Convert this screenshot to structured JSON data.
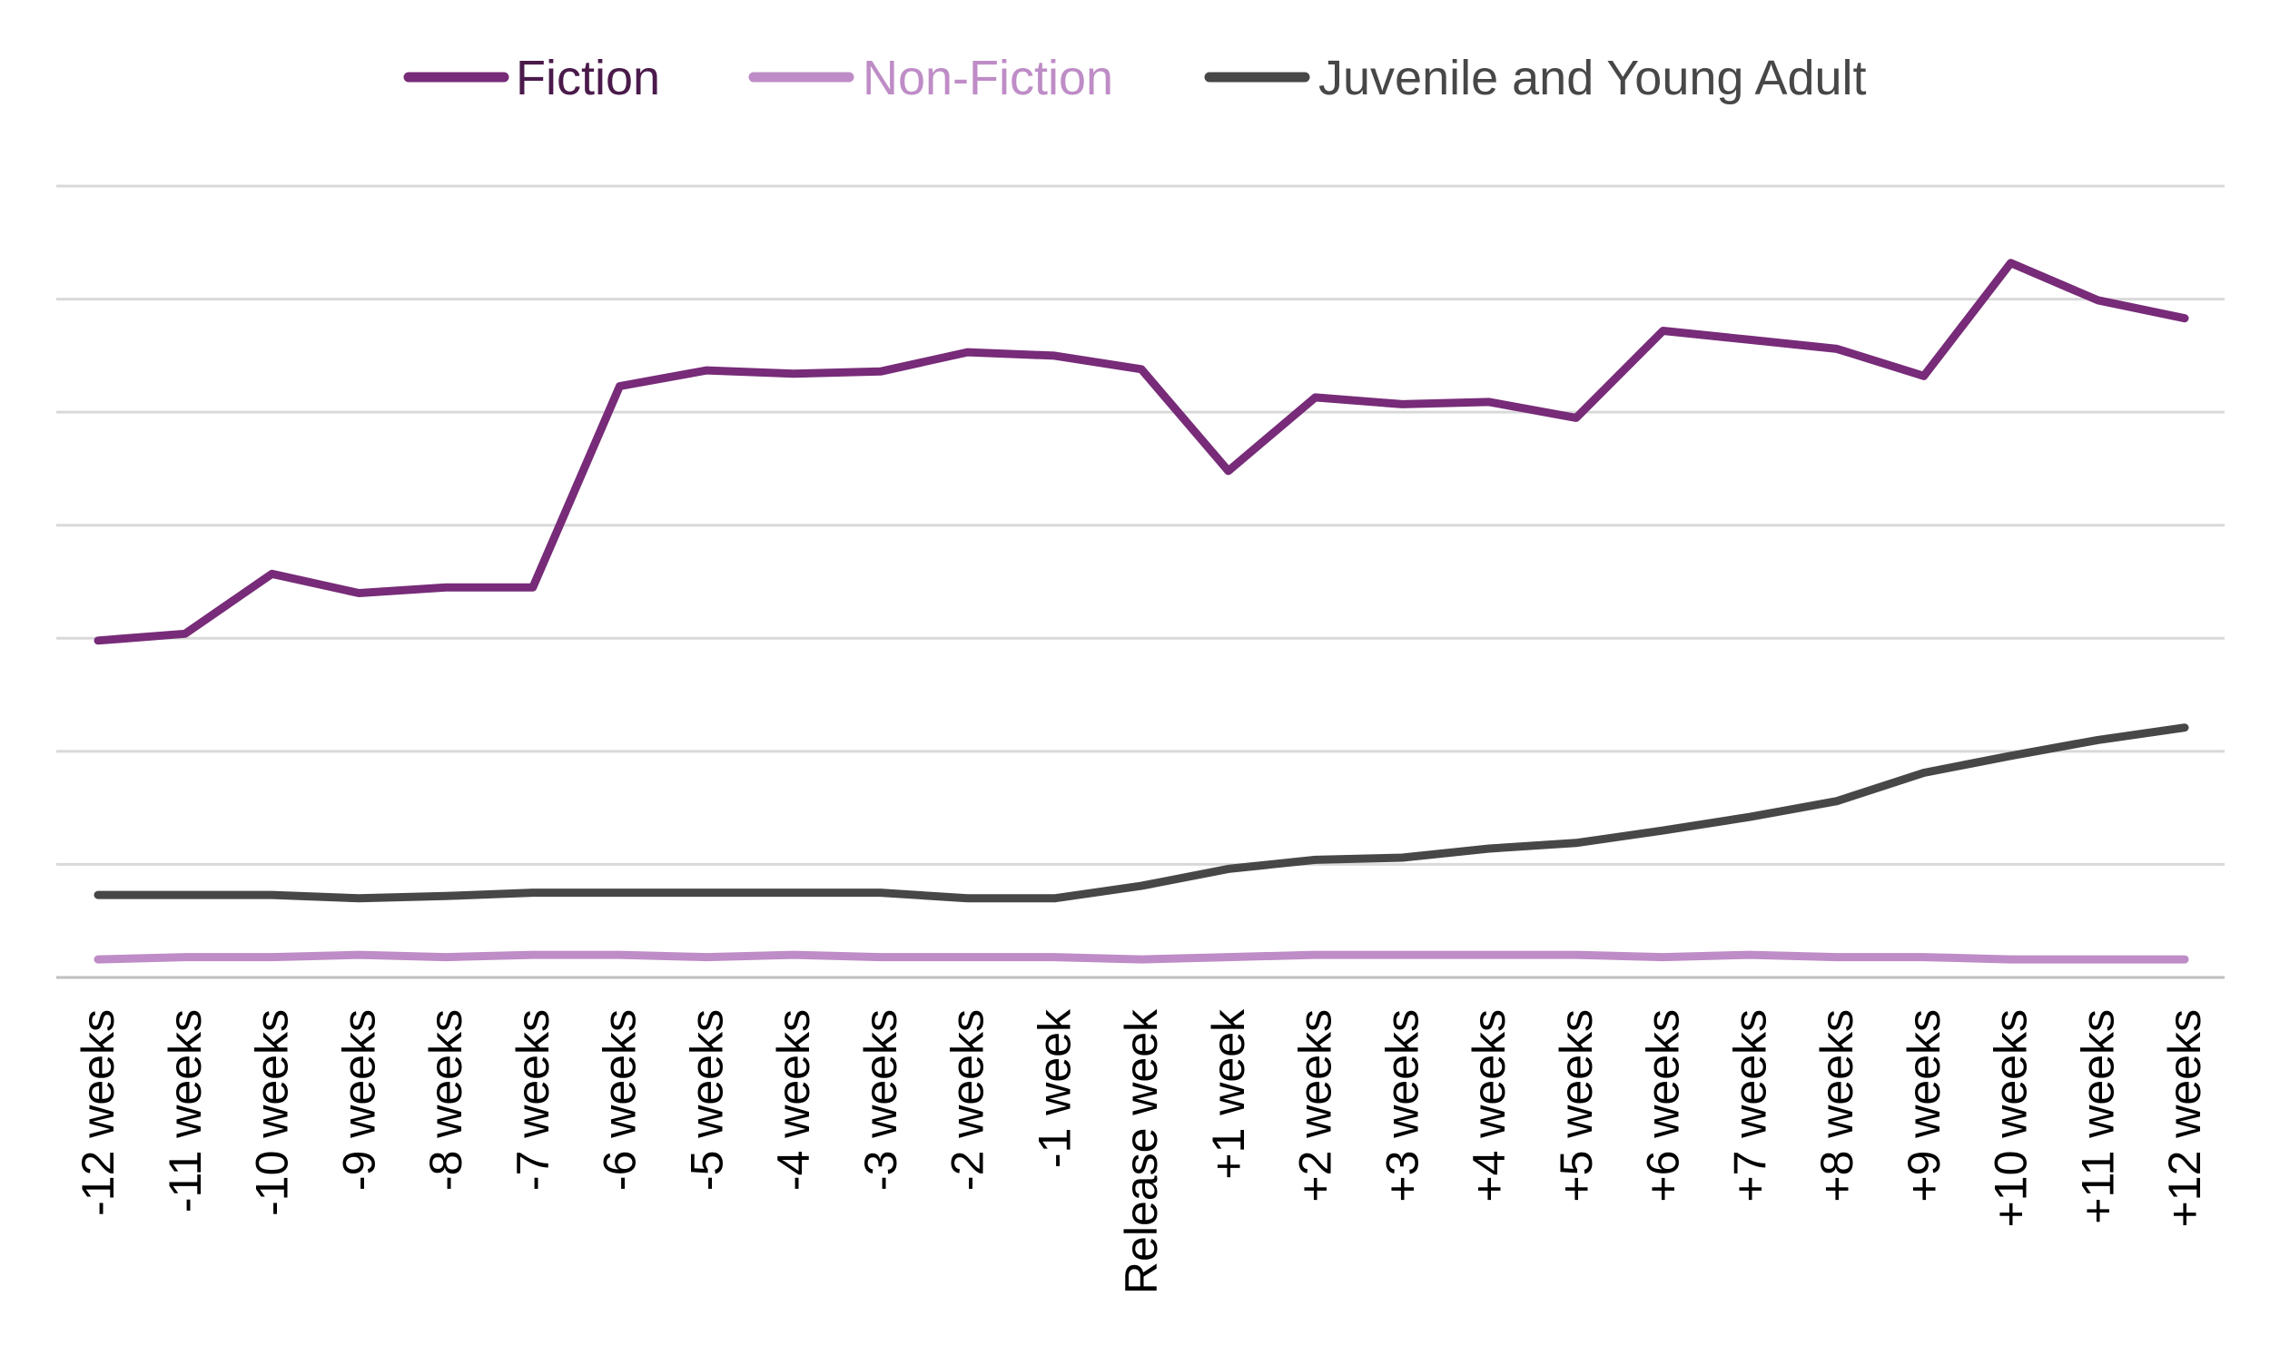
{
  "chart_data": {
    "type": "line",
    "title": "",
    "xlabel": "",
    "ylabel": "",
    "ylim": [
      0,
      7
    ],
    "grid": true,
    "legend": "top-center",
    "categories": [
      "-12 weeks",
      "-11 weeks",
      "-10 weeks",
      "-9 weeks",
      "-8 weeks",
      "-7 weeks",
      "-6 weeks",
      "-5 weeks",
      "-4 weeks",
      "-3 weeks",
      "-2 weeks",
      "-1 week",
      "Release week",
      "+1 week",
      "+2 weeks",
      "+3 weeks",
      "+4 weeks",
      "+5 weeks",
      "+6 weeks",
      "+7 weeks",
      "+8 weeks",
      "+9 weeks",
      "+10 weeks",
      "+11 weeks",
      "+12 weeks"
    ],
    "series": [
      {
        "name": "Fiction",
        "color": "#772b78",
        "legend_text_color": "#4a1a4b",
        "values": [
          2.98,
          3.04,
          3.57,
          3.4,
          3.45,
          3.45,
          5.23,
          5.37,
          5.34,
          5.36,
          5.53,
          5.5,
          5.38,
          4.48,
          5.13,
          5.07,
          5.09,
          4.95,
          5.72,
          5.64,
          5.56,
          5.32,
          6.32,
          5.99,
          5.83
        ]
      },
      {
        "name": "Non-Fiction",
        "color": "#be8cc6",
        "legend_text_color": "#be8cc6",
        "values": [
          0.16,
          0.18,
          0.18,
          0.2,
          0.18,
          0.2,
          0.2,
          0.18,
          0.2,
          0.18,
          0.18,
          0.18,
          0.16,
          0.18,
          0.2,
          0.2,
          0.2,
          0.2,
          0.18,
          0.2,
          0.18,
          0.18,
          0.16,
          0.16,
          0.16
        ]
      },
      {
        "name": "Juvenile and Young Adult",
        "color": "#474747",
        "legend_text_color": "#474747",
        "values": [
          0.73,
          0.73,
          0.73,
          0.7,
          0.72,
          0.75,
          0.75,
          0.75,
          0.75,
          0.75,
          0.7,
          0.7,
          0.81,
          0.96,
          1.04,
          1.06,
          1.14,
          1.19,
          1.3,
          1.42,
          1.56,
          1.81,
          1.96,
          2.1,
          2.21
        ]
      }
    ]
  }
}
